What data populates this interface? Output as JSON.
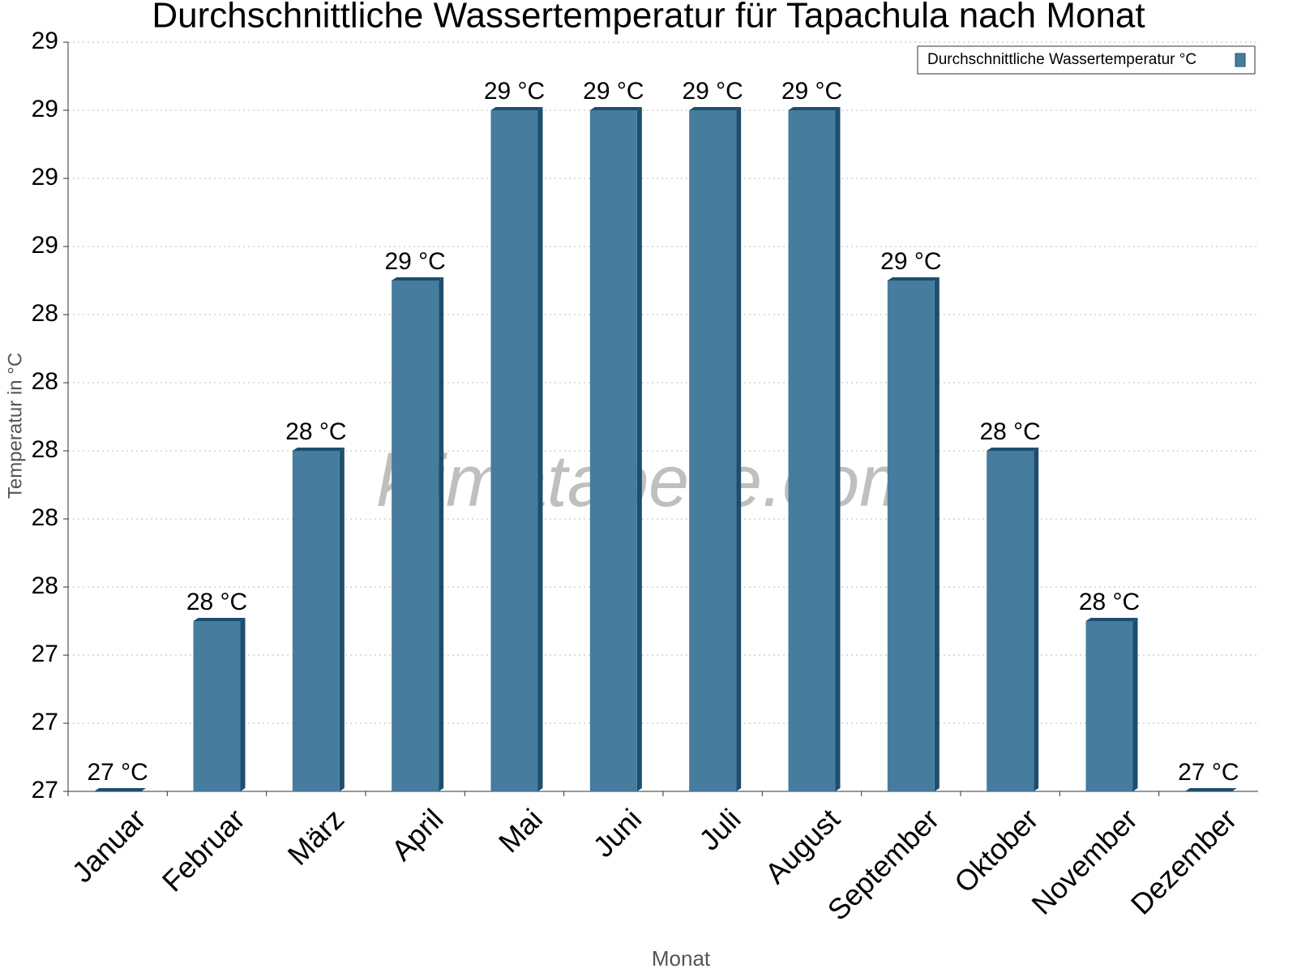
{
  "chart_data": {
    "type": "bar",
    "title": "Durchschnittliche Wassertemperatur für Tapachula nach Monat",
    "x_label": "Monat",
    "y_label": "Temperatur in °C",
    "watermark": "klimatabelle.com",
    "categories": [
      "Januar",
      "Februar",
      "März",
      "April",
      "Mai",
      "Juni",
      "Juli",
      "August",
      "September",
      "Oktober",
      "November",
      "Dezember"
    ],
    "series": [
      {
        "name": "Durchschnittliche Wassertemperatur °C",
        "color": "#467c9d",
        "values": [
          27.0,
          27.5,
          28.0,
          28.5,
          29.0,
          29.0,
          29.0,
          29.0,
          28.5,
          28.0,
          27.5,
          27.0
        ],
        "value_labels": [
          "27 °C",
          "28 °C",
          "28 °C",
          "29 °C",
          "29 °C",
          "29 °C",
          "29 °C",
          "29 °C",
          "29 °C",
          "28 °C",
          "28 °C",
          "27 °C"
        ]
      }
    ],
    "ylim": [
      27,
      29.2
    ],
    "yticks": [
      27,
      {
        "value": 27.2,
        "label": "27"
      },
      {
        "value": 27.4,
        "label": "27"
      },
      {
        "value": 27.6,
        "label": "28"
      },
      {
        "value": 27.8,
        "label": "28"
      },
      28,
      {
        "value": 28.2,
        "label": "28"
      },
      {
        "value": 28.4,
        "label": "28"
      },
      {
        "value": 28.6,
        "label": "29"
      },
      {
        "value": 28.8,
        "label": "29"
      },
      29,
      {
        "value": 29.2,
        "label": "29"
      }
    ],
    "grid": true,
    "legend": "top-right"
  }
}
